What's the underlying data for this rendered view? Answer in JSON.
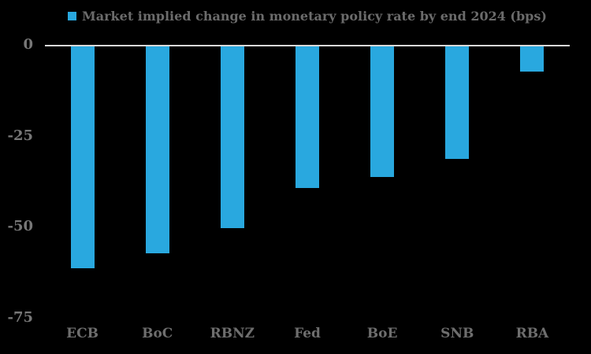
{
  "chart_data": {
    "type": "bar",
    "legend_label": "Market implied change in monetary policy rate by end 2024 (bps)",
    "categories": [
      "ECB",
      "BoC",
      "RBNZ",
      "Fed",
      "BoE",
      "SNB",
      "RBA"
    ],
    "values": [
      -61,
      -57,
      -50,
      -39,
      -36,
      -31,
      -7
    ],
    "ylim": [
      -75,
      0
    ],
    "yticks": [
      0,
      -25,
      -50,
      -75
    ],
    "ytick_labels": [
      "0",
      "-25",
      "-50",
      "-75"
    ],
    "xlabel": "",
    "ylabel": "",
    "grid": false,
    "legend_position": "top-center",
    "colors": {
      "bar": "#29a8df",
      "background": "#000000",
      "axis_line": "#d9d9d9",
      "tick_label": "#777777",
      "category_label": "#6e6e6e",
      "legend_text": "#6b6b6b"
    }
  }
}
